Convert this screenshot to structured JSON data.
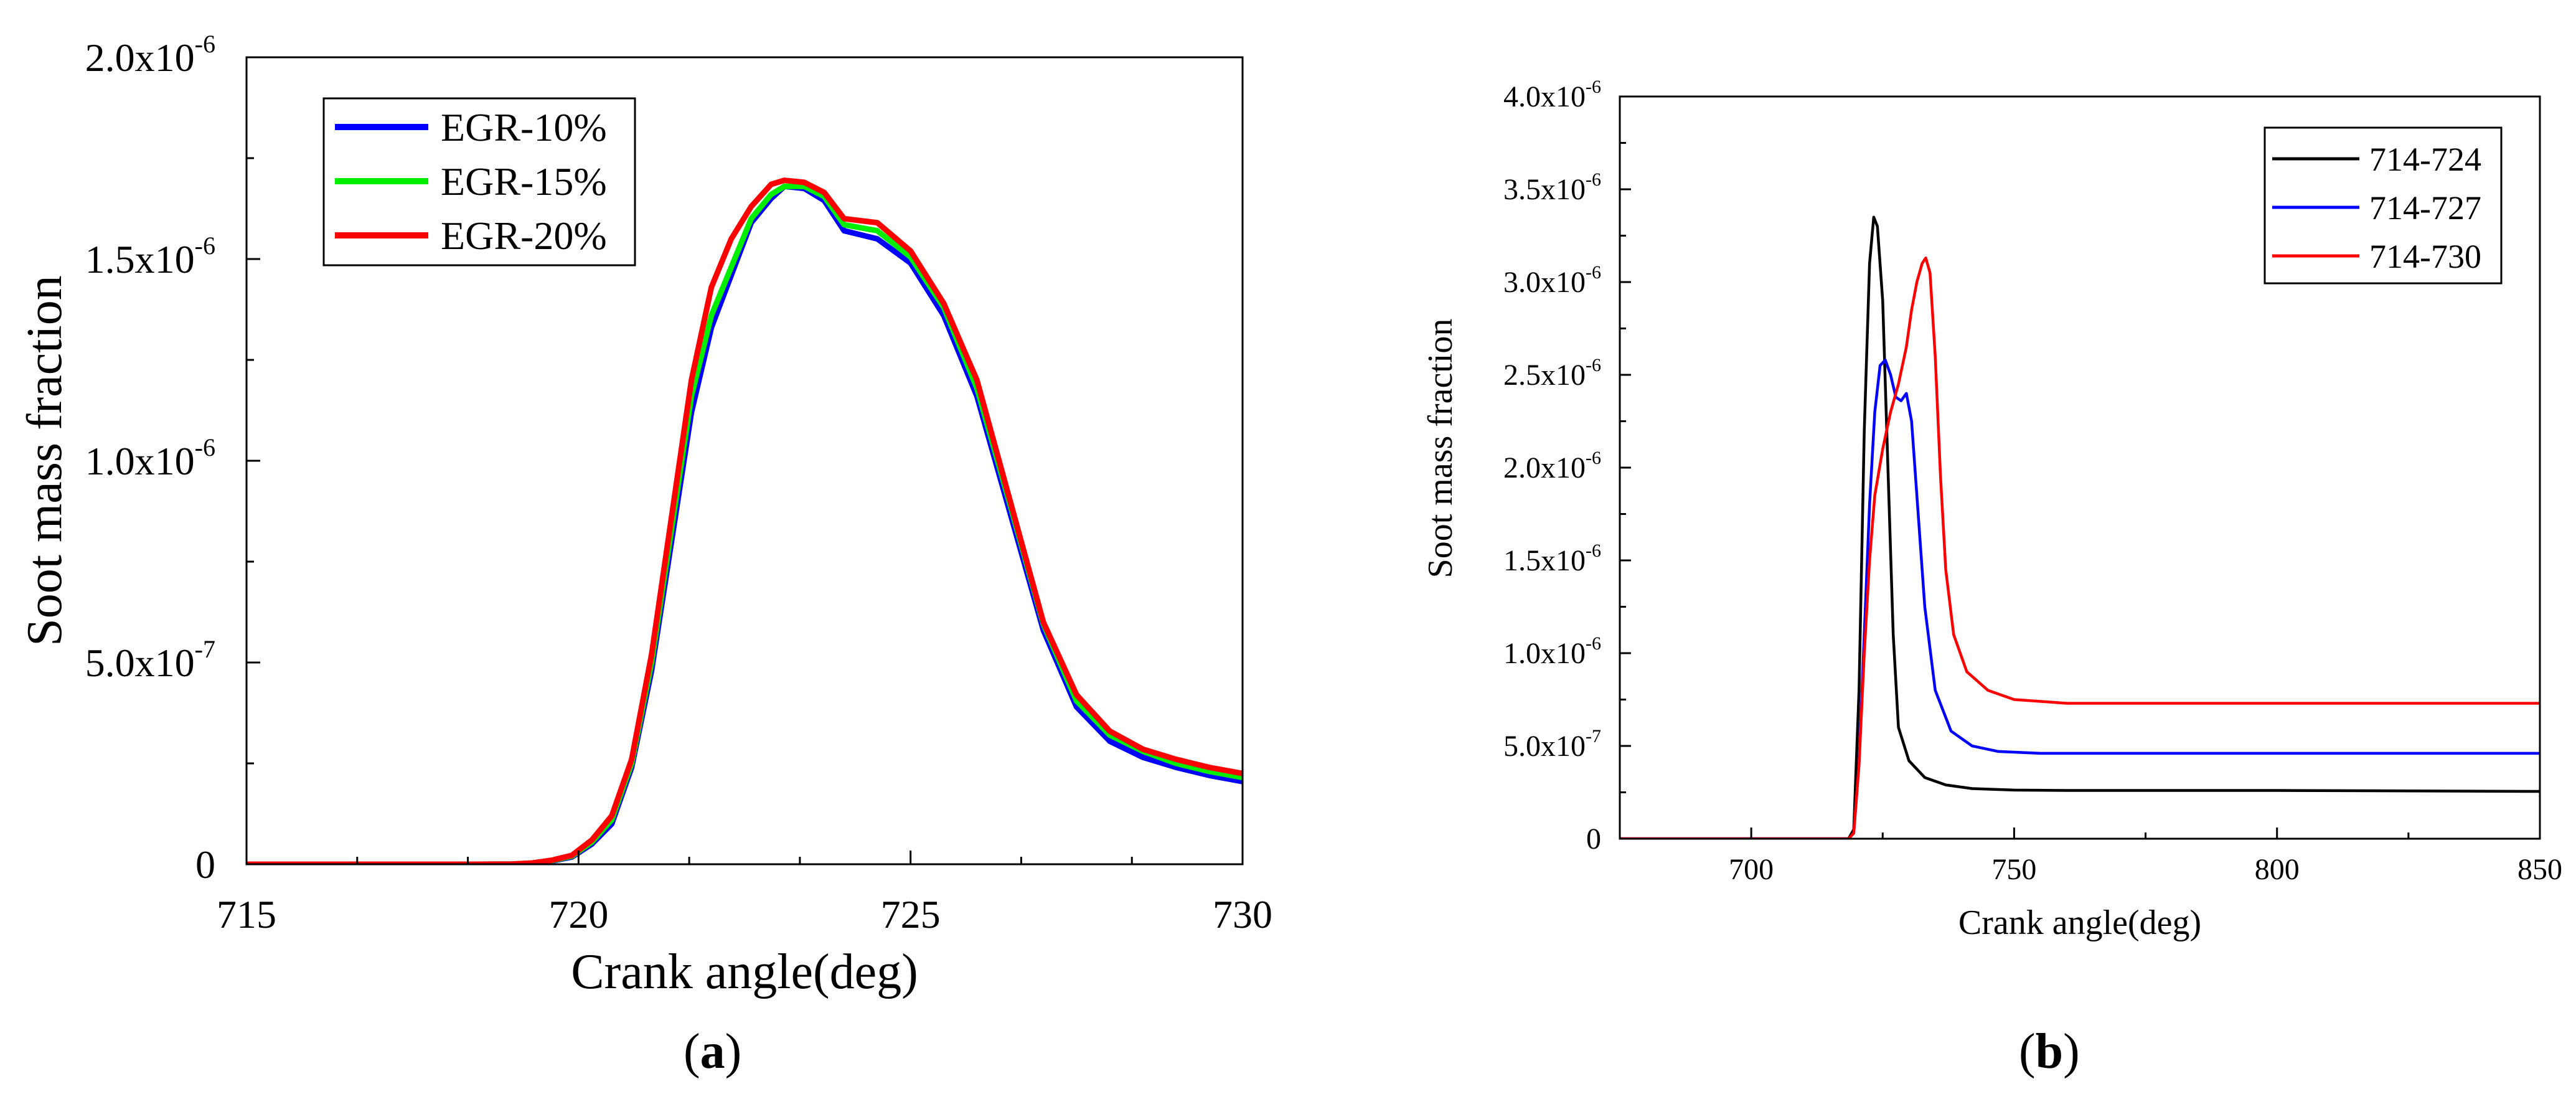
{
  "chart_data": [
    {
      "type": "line",
      "panel_label": "a",
      "xlabel": "Crank angle(deg)",
      "ylabel": "Soot mass fraction",
      "xlim": [
        715,
        730
      ],
      "ylim": [
        0,
        2e-06
      ],
      "xticks": [
        715,
        720,
        725,
        730
      ],
      "xtick_labels": [
        "715",
        "720",
        "725",
        "730"
      ],
      "yticks": [
        0,
        5e-07,
        1e-06,
        1.5e-06,
        2e-06
      ],
      "ytick_labels": [
        {
          "base": "0",
          "exp": ""
        },
        {
          "base": "5.0x10",
          "exp": "-7"
        },
        {
          "base": "1.0x10",
          "exp": "-6"
        },
        {
          "base": "1.5x10",
          "exp": "-6"
        },
        {
          "base": "2.0x10",
          "exp": "-6"
        }
      ],
      "legend_position": "top-left",
      "series": [
        {
          "name": "EGR-10%",
          "color": "#0000ff",
          "x": [
            715,
            716,
            717,
            718,
            718.5,
            719,
            719.3,
            719.6,
            719.9,
            720.2,
            720.5,
            720.8,
            721.1,
            721.4,
            721.7,
            722,
            722.3,
            722.6,
            722.9,
            723.1,
            723.4,
            723.7,
            724,
            724.5,
            725,
            725.5,
            726,
            726.5,
            727,
            727.5,
            728,
            728.5,
            729,
            729.5,
            730
          ],
          "values": [
            0,
            0,
            0,
            0,
            0,
            5e-10,
            2.5e-09,
            8e-09,
            1.8e-08,
            5e-08,
            1e-07,
            2.4e-07,
            4.8e-07,
            8e-07,
            1.12e-06,
            1.33e-06,
            1.46e-06,
            1.59e-06,
            1.65e-06,
            1.68e-06,
            1.675e-06,
            1.645e-06,
            1.57e-06,
            1.55e-06,
            1.49e-06,
            1.36e-06,
            1.16e-06,
            8.7e-07,
            5.8e-07,
            3.9e-07,
            3.05e-07,
            2.65e-07,
            2.4e-07,
            2.2e-07,
            2.05e-07
          ]
        },
        {
          "name": "EGR-15%",
          "color": "#00ee00",
          "x": [
            715,
            716,
            717,
            718,
            718.5,
            719,
            719.3,
            719.6,
            719.9,
            720.2,
            720.5,
            720.8,
            721.1,
            721.4,
            721.7,
            722,
            722.3,
            722.6,
            722.9,
            723.1,
            723.4,
            723.7,
            724,
            724.5,
            725,
            725.5,
            726,
            726.5,
            727,
            727.5,
            728,
            728.5,
            729,
            729.5,
            730
          ],
          "values": [
            0,
            0,
            0,
            0,
            0,
            5e-10,
            3e-09,
            9e-09,
            2e-08,
            5.5e-08,
            1.1e-07,
            2.5e-07,
            5e-07,
            8.3e-07,
            1.16e-06,
            1.36e-06,
            1.48e-06,
            1.6e-06,
            1.66e-06,
            1.68e-06,
            1.68e-06,
            1.655e-06,
            1.585e-06,
            1.57e-06,
            1.505e-06,
            1.38e-06,
            1.18e-06,
            8.9e-07,
            5.95e-07,
            4.05e-07,
            3.2e-07,
            2.8e-07,
            2.5e-07,
            2.3e-07,
            2.15e-07
          ]
        },
        {
          "name": "EGR-20%",
          "color": "#ff0000",
          "x": [
            715,
            716,
            717,
            718,
            718.5,
            719,
            719.3,
            719.6,
            719.9,
            720.2,
            720.5,
            720.8,
            721.1,
            721.4,
            721.7,
            722,
            722.3,
            722.6,
            722.9,
            723.1,
            723.4,
            723.7,
            724,
            724.5,
            725,
            725.5,
            726,
            726.5,
            727,
            727.5,
            728,
            728.5,
            729,
            729.5,
            730
          ],
          "values": [
            0,
            0,
            0,
            0,
            0,
            5e-10,
            3e-09,
            1e-08,
            2.2e-08,
            6e-08,
            1.2e-07,
            2.6e-07,
            5.2e-07,
            8.6e-07,
            1.2e-06,
            1.43e-06,
            1.55e-06,
            1.63e-06,
            1.685e-06,
            1.695e-06,
            1.69e-06,
            1.665e-06,
            1.6e-06,
            1.59e-06,
            1.52e-06,
            1.39e-06,
            1.2e-06,
            9e-07,
            6e-07,
            4.2e-07,
            3.3e-07,
            2.85e-07,
            2.6e-07,
            2.4e-07,
            2.25e-07
          ]
        }
      ]
    },
    {
      "type": "line",
      "panel_label": "b",
      "xlabel": "Crank angle(deg)",
      "ylabel": "Soot mass fraction",
      "xlim": [
        675,
        850
      ],
      "ylim": [
        0,
        4e-06
      ],
      "xticks": [
        700,
        750,
        800,
        850
      ],
      "xtick_labels": [
        "700",
        "750",
        "800",
        "850"
      ],
      "yticks": [
        0,
        5e-07,
        1e-06,
        1.5e-06,
        2e-06,
        2.5e-06,
        3e-06,
        3.5e-06,
        4e-06
      ],
      "ytick_labels": [
        {
          "base": "0",
          "exp": ""
        },
        {
          "base": "5.0x10",
          "exp": "-7"
        },
        {
          "base": "1.0x10",
          "exp": "-6"
        },
        {
          "base": "1.5x10",
          "exp": "-6"
        },
        {
          "base": "2.0x10",
          "exp": "-6"
        },
        {
          "base": "2.5x10",
          "exp": "-6"
        },
        {
          "base": "3.0x10",
          "exp": "-6"
        },
        {
          "base": "3.5x10",
          "exp": "-6"
        },
        {
          "base": "4.0x10",
          "exp": "-6"
        }
      ],
      "legend_position": "top-right",
      "series": [
        {
          "name": "714-724",
          "color": "#000000",
          "x": [
            675,
            700,
            714,
            717,
            718.5,
            719.5,
            720.5,
            721.5,
            722.5,
            723.3,
            724,
            725,
            726,
            727,
            728,
            730,
            733,
            737,
            742,
            750,
            760,
            800,
            850
          ],
          "values": [
            0,
            0,
            0,
            0,
            0,
            5e-08,
            8e-07,
            2.2e-06,
            3.1e-06,
            3.35e-06,
            3.3e-06,
            2.9e-06,
            2e-06,
            1.1e-06,
            6e-07,
            4.2e-07,
            3.3e-07,
            2.9e-07,
            2.7e-07,
            2.62e-07,
            2.6e-07,
            2.6e-07,
            2.55e-07
          ]
        },
        {
          "name": "714-727",
          "color": "#0000ff",
          "x": [
            675,
            700,
            714,
            717,
            718.5,
            719.5,
            720.5,
            721.5,
            722.5,
            723.5,
            724.5,
            725.5,
            726.5,
            727.5,
            728.5,
            729.5,
            730.5,
            731.5,
            733,
            735,
            738,
            742,
            747,
            755,
            770,
            800,
            850
          ],
          "values": [
            0,
            0,
            0,
            0,
            0,
            3e-08,
            4e-07,
            1.1e-06,
            1.8e-06,
            2.3e-06,
            2.55e-06,
            2.58e-06,
            2.5e-06,
            2.38e-06,
            2.36e-06,
            2.4e-06,
            2.25e-06,
            1.85e-06,
            1.25e-06,
            8e-07,
            5.8e-07,
            5e-07,
            4.7e-07,
            4.6e-07,
            4.6e-07,
            4.6e-07,
            4.6e-07
          ]
        },
        {
          "name": "714-730",
          "color": "#ff0000",
          "x": [
            675,
            700,
            714,
            717,
            718.5,
            719.5,
            720.5,
            721.5,
            722.5,
            723.5,
            725,
            726.5,
            728,
            729.5,
            730.5,
            731.5,
            732.5,
            733.2,
            734,
            735,
            736,
            737,
            738.5,
            741,
            745,
            750,
            760,
            800,
            850
          ],
          "values": [
            0,
            0,
            0,
            0,
            0,
            3e-08,
            4e-07,
            1e-06,
            1.5e-06,
            1.85e-06,
            2.1e-06,
            2.3e-06,
            2.45e-06,
            2.65e-06,
            2.85e-06,
            3e-06,
            3.1e-06,
            3.13e-06,
            3.05e-06,
            2.6e-06,
            1.95e-06,
            1.45e-06,
            1.1e-06,
            9e-07,
            8e-07,
            7.5e-07,
            7.3e-07,
            7.3e-07,
            7.3e-07
          ]
        }
      ]
    }
  ]
}
